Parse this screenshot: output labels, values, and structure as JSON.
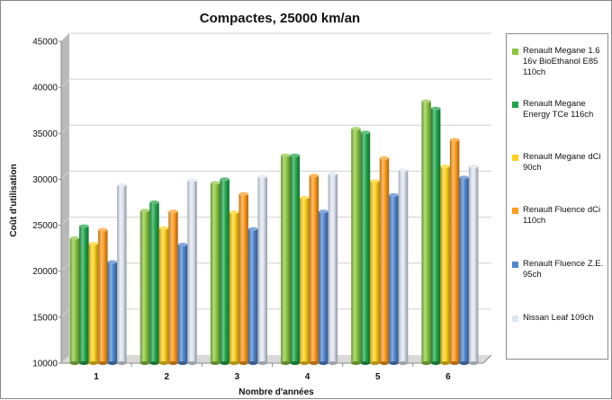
{
  "chart_data": {
    "type": "bar",
    "title": "Compactes, 25000 km/an",
    "xlabel": "Nombre d'années",
    "ylabel": "Coût d'utilisation",
    "ylim": [
      10000,
      45000
    ],
    "yticks": [
      "10000",
      "15000",
      "20000",
      "25000",
      "30000",
      "35000",
      "40000",
      "45000"
    ],
    "categories": [
      "1",
      "2",
      "3",
      "4",
      "5",
      "6"
    ],
    "grid": true,
    "legend_position": "right",
    "series": [
      {
        "name": "Renault Megane 1.6 16v BioEthanol E85 110ch",
        "color": "#8cc63f",
        "values": [
          23600,
          26600,
          29600,
          32600,
          35500,
          38500
        ]
      },
      {
        "name": "Renault Megane Energy TCe 116ch",
        "color": "#1fa64a",
        "values": [
          24900,
          27500,
          30000,
          32600,
          35100,
          37700
        ]
      },
      {
        "name": "Renault Megane dCi 90ch",
        "color": "#ffd11a",
        "values": [
          23000,
          24700,
          26400,
          28000,
          29800,
          31400
        ]
      },
      {
        "name": "Renault Fluence dCi 110ch",
        "color": "#ff9a1a",
        "values": [
          24500,
          26500,
          28400,
          30400,
          32300,
          34300
        ]
      },
      {
        "name": "Renault Fluence Z.E. 95ch",
        "color": "#4f86cf",
        "values": [
          21000,
          22900,
          24600,
          26500,
          28300,
          30200
        ]
      },
      {
        "name": "Nissan Leaf 109ch",
        "color": "#dfe6f2",
        "values": [
          29400,
          29900,
          30300,
          30600,
          31000,
          31400
        ]
      }
    ]
  }
}
